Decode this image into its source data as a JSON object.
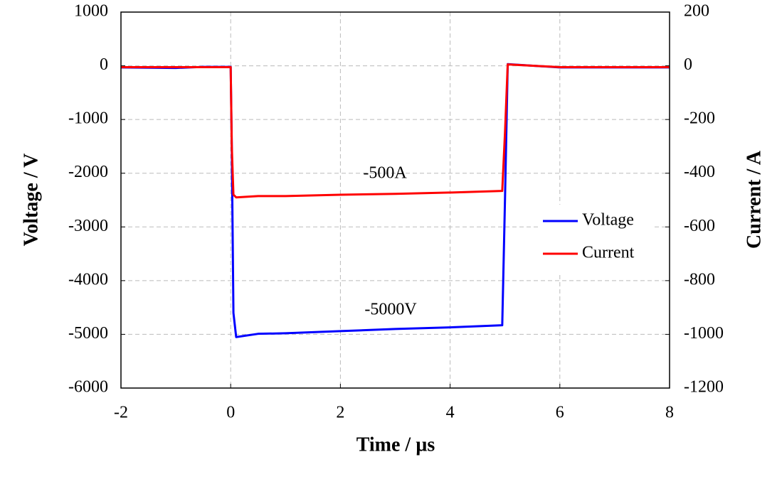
{
  "chart_data": {
    "type": "line",
    "xlabel": "Time / µs",
    "ylabel": "Voltage / V",
    "y2label": "Current / A",
    "x": [
      -2,
      -1,
      -0.5,
      0,
      0.02,
      0.05,
      0.1,
      0.5,
      1,
      2,
      3,
      4,
      4.95,
      5.0,
      5.05,
      6,
      7,
      8
    ],
    "series": [
      {
        "name": "Voltage",
        "color": "#0000ff",
        "axis": "y",
        "values": [
          -30,
          -40,
          -20,
          -20,
          -1500,
          -4600,
          -5050,
          -4990,
          -4980,
          -4940,
          -4900,
          -4870,
          -4830,
          -2500,
          30,
          -30,
          -30,
          -30
        ]
      },
      {
        "name": "Current",
        "color": "#ff0000",
        "axis": "y2",
        "values": [
          -5,
          -5,
          -5,
          -5,
          -300,
          -480,
          -490,
          -485,
          -485,
          -480,
          -477,
          -472,
          -466,
          -250,
          5,
          -5,
          -5,
          -5
        ]
      }
    ],
    "annotations": [
      "-500A",
      "-5000V"
    ],
    "xlim": [
      -2,
      8
    ],
    "xticks": [
      -2,
      0,
      2,
      4,
      6,
      8
    ],
    "ylim": [
      -6000,
      1000
    ],
    "yticks": [
      1000,
      0,
      -1000,
      -2000,
      -3000,
      -4000,
      -5000,
      -6000
    ],
    "y2lim": [
      -1200,
      200
    ],
    "y2ticks": [
      200,
      0,
      -200,
      -400,
      -600,
      -800,
      -1000,
      -1200
    ],
    "grid": true,
    "legend": "right"
  }
}
